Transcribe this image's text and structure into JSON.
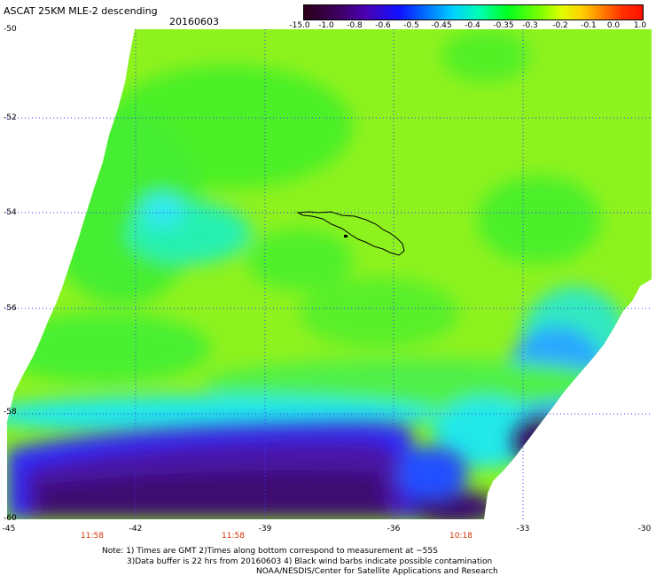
{
  "header": {
    "title": "ASCAT 25KM MLE-2 descending",
    "date": "20160603"
  },
  "colorbar": {
    "labels": [
      "-15.0",
      "-1.0",
      "-0.8",
      "-0.6",
      "-0.5",
      "-0.45",
      "-0.4",
      "-0.35",
      "-0.3",
      "-0.2",
      "-0.1",
      "0.0",
      "1.0"
    ]
  },
  "map": {
    "lat_labels": [
      "-50",
      "-52",
      "-54",
      "-56",
      "-58",
      "-60"
    ],
    "lon_labels": [
      "-45",
      "-42",
      "-39",
      "-36",
      "-33",
      "-30"
    ],
    "time_labels": [
      "11:58",
      "11:58",
      "10:18"
    ],
    "colors": {
      "swath_green": "#44f020",
      "swath_yellowgreen": "#9cf81c",
      "swath_cyan": "#20f0e0",
      "swath_blue": "#1030ff",
      "swath_purple": "#4a10a0",
      "swath_darkpurple": "#3a0a50",
      "grid_blue": "#3a3aff",
      "time_label": "#d03000"
    }
  },
  "notes": {
    "line1": "Note: 1) Times are GMT 2)Times along bottom correspond to measurement at ~55S",
    "line2": "3)Data buffer is 22 hrs from 20160603 4) Black wind barbs indicate possible contamination",
    "line3": "NOAA/NESDIS/Center for Satellite Applications and Research"
  }
}
